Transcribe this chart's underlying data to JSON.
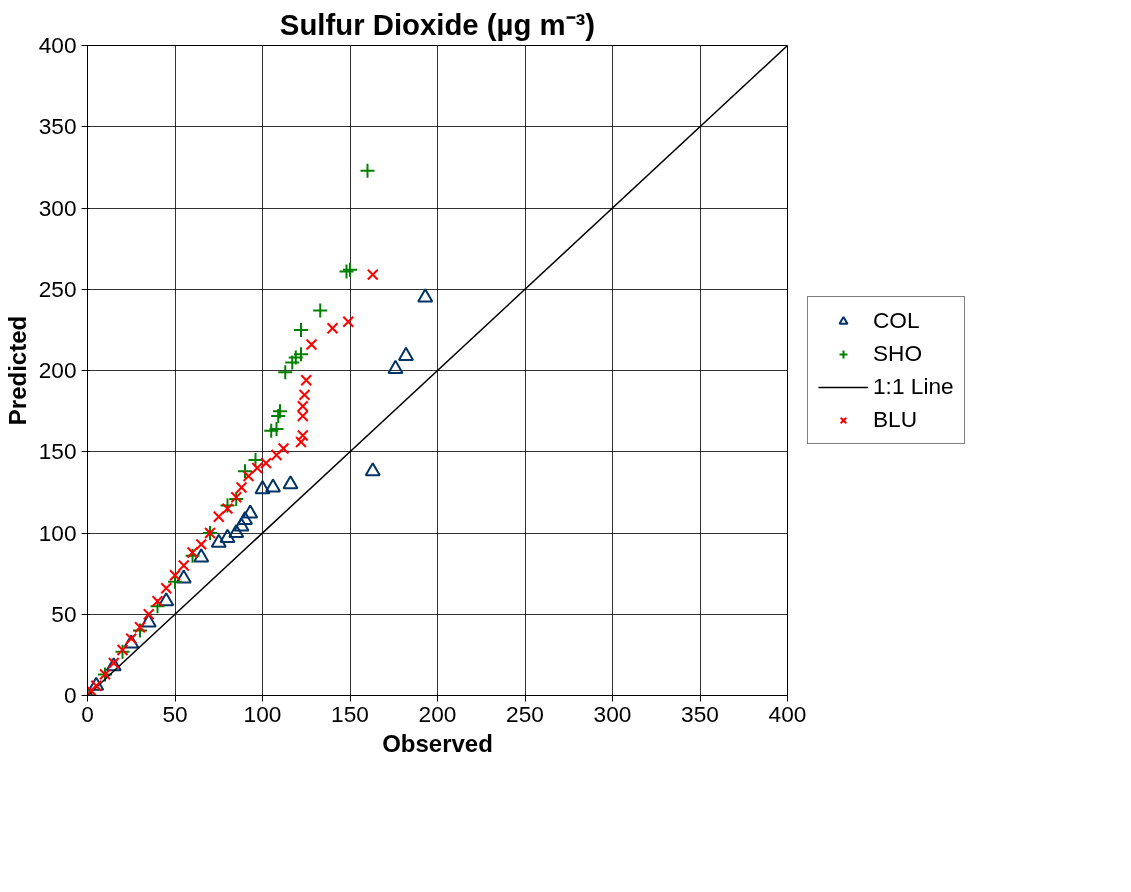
{
  "chart_data": {
    "type": "scatter",
    "title": "Sulfur Dioxide (µg m⁻³)",
    "xlabel": "Observed",
    "ylabel": "Predicted",
    "xlim": [
      0,
      400
    ],
    "ylim": [
      0,
      400
    ],
    "xticks": [
      0,
      50,
      100,
      150,
      200,
      250,
      300,
      350,
      400
    ],
    "yticks": [
      0,
      50,
      100,
      150,
      200,
      250,
      300,
      350,
      400
    ],
    "grid": true,
    "legend": "right",
    "series": [
      {
        "name": "COL",
        "color": "#003366",
        "marker": "triangle",
        "x": [
          0,
          5,
          15,
          25,
          35,
          45,
          55,
          65,
          75,
          80,
          85,
          88,
          90,
          93,
          100,
          106,
          116,
          163,
          176,
          182,
          193
        ],
        "values": [
          0,
          6,
          18,
          32,
          45,
          58,
          72,
          85,
          94,
          97,
          100,
          104,
          108,
          112,
          127,
          128,
          130,
          138,
          201,
          209,
          245
        ]
      },
      {
        "name": "SHO",
        "color": "#008000",
        "marker": "plus",
        "x": [
          0,
          10,
          20,
          30,
          40,
          50,
          60,
          70,
          80,
          85,
          90,
          96,
          105,
          108,
          109,
          110,
          113,
          117,
          119,
          122,
          122,
          133,
          148,
          150,
          160
        ],
        "values": [
          0,
          13,
          27,
          40,
          55,
          70,
          86,
          100,
          117,
          121,
          138,
          145,
          163,
          164,
          172,
          175,
          199,
          205,
          208,
          210,
          225,
          237,
          261,
          262,
          323
        ]
      },
      {
        "name": "1:1 Line",
        "type": "line",
        "color": "#000000",
        "x": [
          0,
          400
        ],
        "values": [
          0,
          400
        ]
      },
      {
        "name": "BLU",
        "color": "#ff0000",
        "marker": "x",
        "x": [
          2,
          5,
          10,
          15,
          20,
          25,
          30,
          35,
          40,
          45,
          50,
          55,
          60,
          65,
          70,
          75,
          80,
          85,
          88,
          92,
          97,
          102,
          108,
          112,
          122,
          123,
          123,
          123,
          124,
          125,
          128,
          140,
          149,
          163
        ],
        "values": [
          3,
          6,
          13,
          20,
          28,
          35,
          42,
          50,
          58,
          66,
          74,
          80,
          88,
          93,
          100,
          110,
          115,
          122,
          128,
          135,
          140,
          143,
          148,
          152,
          156,
          160,
          172,
          178,
          185,
          194,
          216,
          226,
          230,
          259
        ]
      }
    ]
  }
}
